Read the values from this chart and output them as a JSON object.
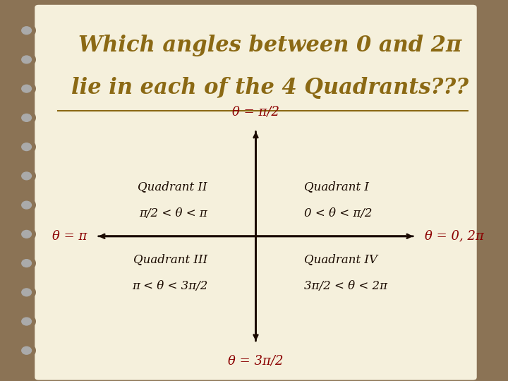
{
  "title_line1": "Which angles between 0 and 2π",
  "title_line2": "lie in each of the 4 Quadrants???",
  "background_color": "#f5f0dc",
  "border_color": "#8B7355",
  "spiral_color": "#8B7355",
  "title_color": "#8B6914",
  "axis_color": "#1a0a00",
  "label_color": "#8B0000",
  "quadrant_text_color": "#1a0a00",
  "axis_label_top": "θ = π/2",
  "axis_label_bottom": "θ = 3π/2",
  "axis_label_left": "θ = π",
  "axis_label_right": "θ = 0, 2π",
  "quadrant_I_line1": "Quadrant I",
  "quadrant_I_line2": "0 < θ < π/2",
  "quadrant_II_line1": "Quadrant II",
  "quadrant_II_line2": "π/2 < θ < π",
  "quadrant_III_line1": "Quadrant III",
  "quadrant_III_line2": "π < θ < 3π/2",
  "quadrant_IV_line1": "Quadrant IV",
  "quadrant_IV_line2": "3π/2 < θ < 2π"
}
